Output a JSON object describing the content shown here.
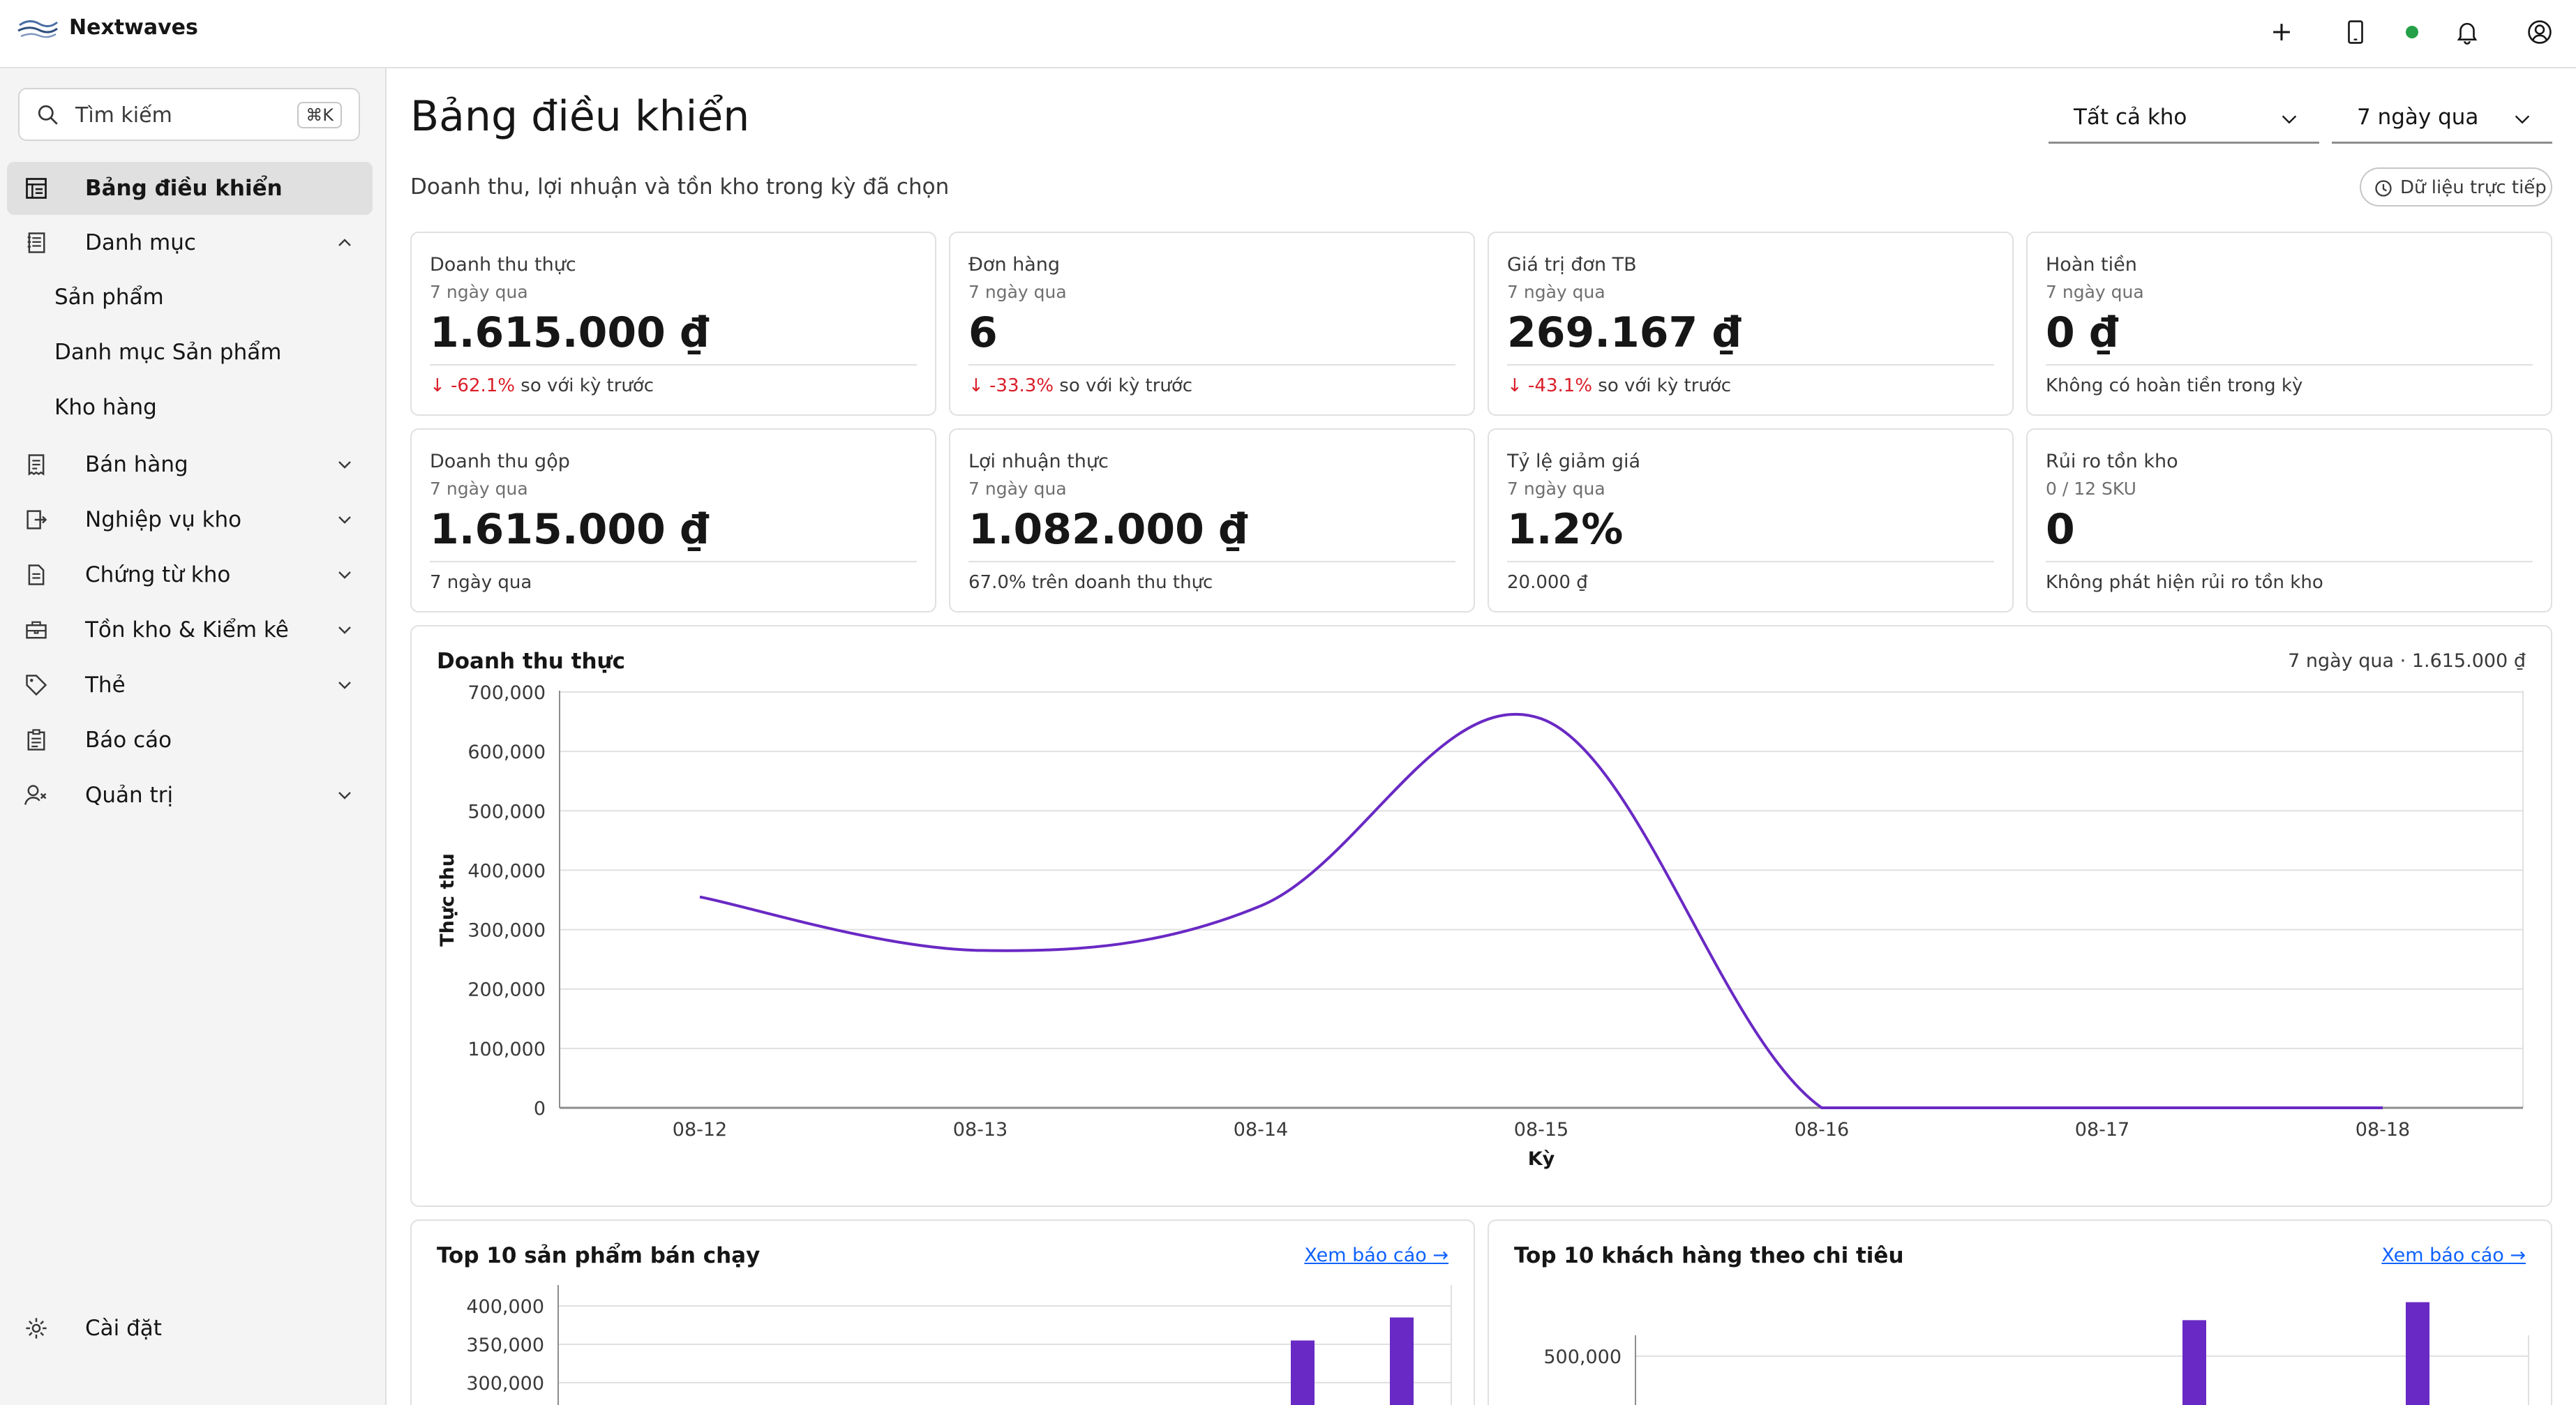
{
  "app": {
    "brand": "Nextwaves"
  },
  "topbar": {
    "icons": [
      "plus-icon",
      "tablet-icon",
      "status-online-dot",
      "bell-icon",
      "user-avatar-icon"
    ],
    "status_color": "#24a148"
  },
  "sidebar": {
    "search": {
      "placeholder": "Tìm kiếm",
      "shortcut": "⌘K"
    },
    "items": [
      {
        "label": "Bảng điều khiển",
        "icon": "dashboard-icon",
        "active": true
      },
      {
        "label": "Danh mục",
        "icon": "catalog-icon",
        "expanded": true
      },
      {
        "label": "Sản phẩm",
        "sub": true
      },
      {
        "label": "Danh mục Sản phẩm",
        "sub": true
      },
      {
        "label": "Kho hàng",
        "sub": true
      },
      {
        "label": "Bán hàng",
        "icon": "receipt-icon"
      },
      {
        "label": "Nghiệp vụ kho",
        "icon": "warehouse-ops-icon"
      },
      {
        "label": "Chứng từ kho",
        "icon": "document-icon"
      },
      {
        "label": "Tồn kho & Kiểm kê",
        "icon": "inventory-icon"
      },
      {
        "label": "Thẻ",
        "icon": "tag-icon"
      },
      {
        "label": "Báo cáo",
        "icon": "report-icon"
      },
      {
        "label": "Quản trị",
        "icon": "admin-icon"
      }
    ],
    "settings": {
      "label": "Cài đặt",
      "icon": "settings-icon"
    }
  },
  "header": {
    "title": "Bảng điều khiển",
    "subtitle": "Doanh thu, lợi nhuận và tồn kho trong kỳ đã chọn",
    "warehouse_select": "Tất cả kho",
    "period_select": "7 ngày qua",
    "live_label": "Dữ liệu trực tiếp"
  },
  "kpis": [
    {
      "title": "Doanh thu thực",
      "period": "7 ngày qua",
      "value": "1.615.000 ₫",
      "delta": "↓ -62.1%",
      "foot": " so với kỳ trước"
    },
    {
      "title": "Đơn hàng",
      "period": "7 ngày qua",
      "value": "6",
      "delta": "↓ -33.3%",
      "foot": " so với kỳ trước"
    },
    {
      "title": "Giá trị đơn TB",
      "period": "7 ngày qua",
      "value": "269.167 ₫",
      "delta": "↓ -43.1%",
      "foot": " so với kỳ trước"
    },
    {
      "title": "Hoàn tiền",
      "period": "7 ngày qua",
      "value": "0 ₫",
      "delta": "",
      "foot": "Không có hoàn tiền trong kỳ"
    },
    {
      "title": "Doanh thu gộp",
      "period": "7 ngày qua",
      "value": "1.615.000 ₫",
      "delta": "",
      "foot": "7 ngày qua"
    },
    {
      "title": "Lợi nhuận thực",
      "period": "7 ngày qua",
      "value": "1.082.000 ₫",
      "delta": "",
      "foot": "67.0% trên doanh thu thực"
    },
    {
      "title": "Tỷ lệ giảm giá",
      "period": "7 ngày qua",
      "value": "1.2%",
      "delta": "",
      "foot": "20.000 ₫"
    },
    {
      "title": "Rủi ro tồn kho",
      "period": "0 / 12 SKU",
      "value": "0",
      "delta": "",
      "foot": "Không phát hiện rủi ro tồn kho"
    }
  ],
  "revenue_panel": {
    "title": "Doanh thu thực",
    "meta": "7 ngày qua · 1.615.000 ₫"
  },
  "top_products_panel": {
    "title": "Top 10 sản phẩm bán chạy",
    "link": "Xem báo cáo →"
  },
  "top_customers_panel": {
    "title": "Top 10 khách hàng theo chi tiêu",
    "link": "Xem báo cáo →"
  },
  "chart_data": [
    {
      "type": "line",
      "x": [
        "08-12",
        "08-13",
        "08-14",
        "08-15",
        "08-16",
        "08-17",
        "08-18"
      ],
      "series": [
        {
          "values": [
            355000,
            265000,
            340000,
            655000,
            0,
            0,
            0
          ]
        }
      ],
      "xlabel": "Kỳ",
      "ylabel": "Thực thu",
      "ylim": [
        0,
        700000
      ],
      "yticks": [
        "700,000",
        "600,000",
        "500,000",
        "400,000",
        "300,000",
        "200,000",
        "100,000",
        "0"
      ],
      "grid": true,
      "color": "#6929c4"
    },
    {
      "type": "bar",
      "values": [
        355000,
        385000
      ],
      "yticks": [
        "400,000",
        "350,000",
        "300,000"
      ],
      "grid": true,
      "color": "#6929c4"
    },
    {
      "type": "bar",
      "values": [
        540000,
        560000
      ],
      "yticks": [
        "500,000"
      ],
      "grid": true,
      "color": "#6929c4"
    }
  ]
}
